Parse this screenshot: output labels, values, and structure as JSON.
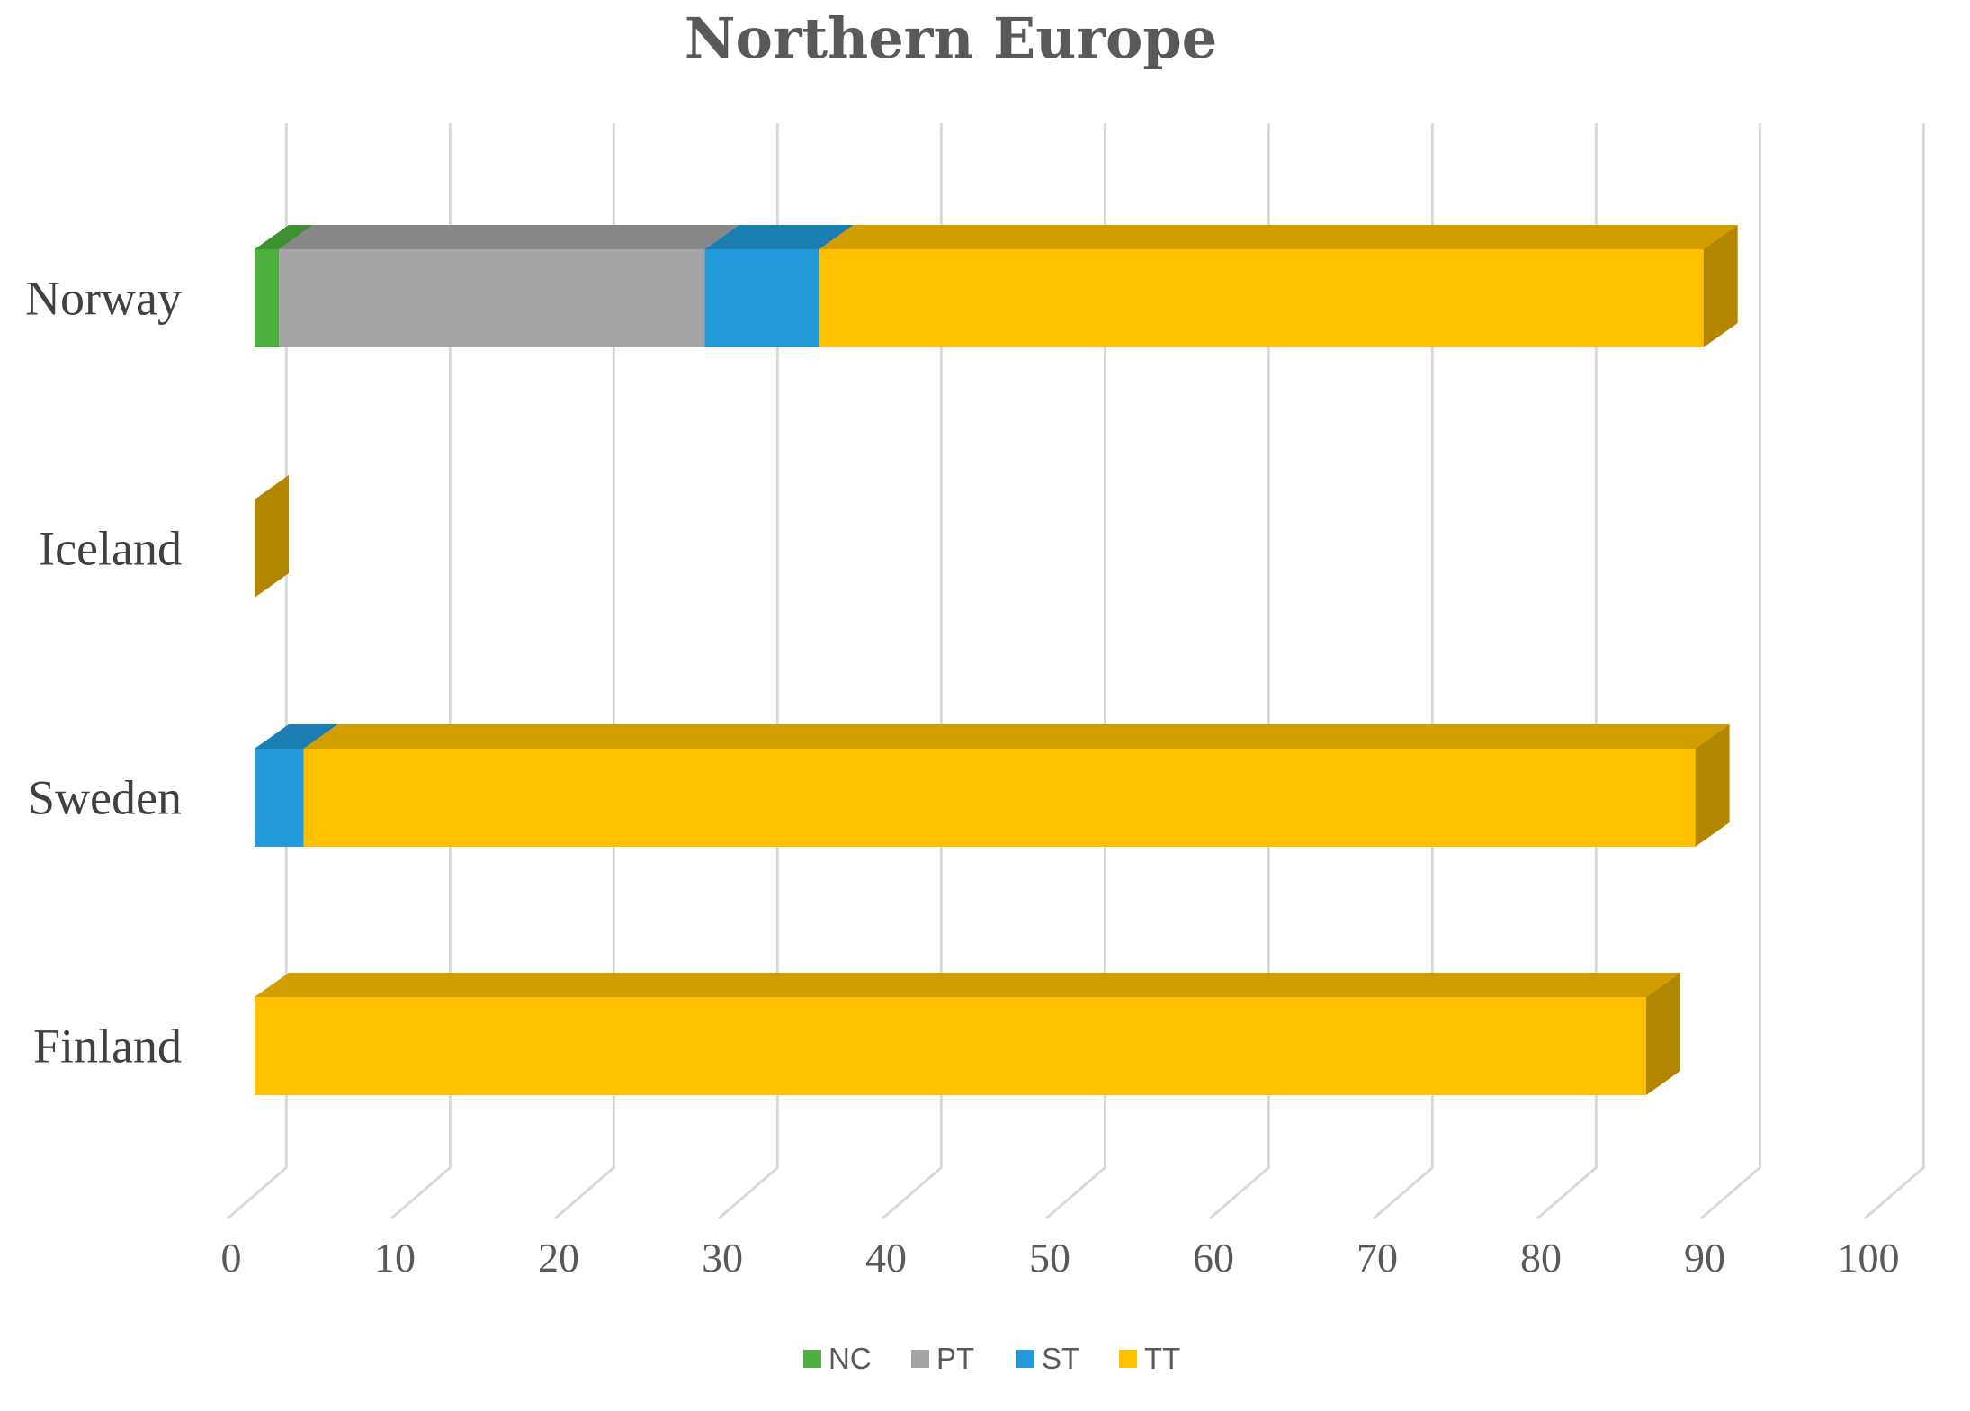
{
  "chart_data": {
    "type": "bar",
    "orientation": "horizontal",
    "stacked": true,
    "style": "3d",
    "title": "Northern Europe",
    "xlabel": "",
    "ylabel": "",
    "categories": [
      "Finland",
      "Sweden",
      "Iceland",
      "Norway"
    ],
    "series": [
      {
        "name": "NC",
        "color": "#4caf3e",
        "values": [
          0,
          0,
          0,
          1.5
        ]
      },
      {
        "name": "PT",
        "color": "#a5a5a5",
        "values": [
          0,
          0,
          0,
          26
        ]
      },
      {
        "name": "ST",
        "color": "#2299d8",
        "values": [
          0,
          3,
          0,
          7
        ]
      },
      {
        "name": "TT",
        "color": "#ffc000",
        "values": [
          85,
          85,
          0,
          54
        ]
      }
    ],
    "xlim": [
      0,
      100
    ],
    "xticks": [
      0,
      10,
      20,
      30,
      40,
      50,
      60,
      70,
      80,
      90,
      100
    ],
    "grid": true,
    "legend": "bottom"
  }
}
